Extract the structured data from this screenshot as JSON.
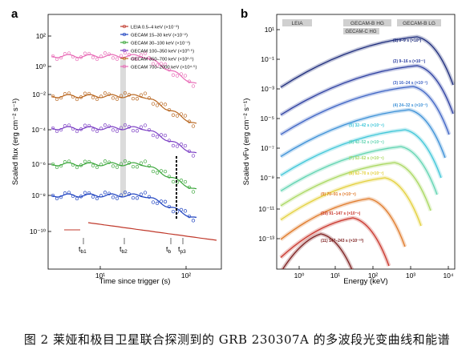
{
  "caption": "图 2  莱娅和极目卫星联合探测到的 GRB 230307A 的多波段光变曲线和能谱",
  "panel_a": {
    "label": "a",
    "xlabel": "Time since trigger (s)",
    "ylabel": "Scaled flux (erg cm⁻² s⁻¹)",
    "xscale": "log",
    "yscale": "log",
    "xlim": [
      2,
      300
    ],
    "ylim": [
      1e-11,
      10000.0
    ],
    "x_ticks": [
      "10⁰",
      "10¹",
      "10²"
    ],
    "y_ticks": [
      "10⁻¹⁰",
      "10⁻⁸",
      "10⁻⁶",
      "10⁻⁴",
      "10⁻²",
      "10⁰",
      "10²"
    ],
    "legend": [
      {
        "label": "LEIA 0.5–4 keV (×10⁻³)",
        "color": "#c0392b"
      },
      {
        "label": "GECAM 15–30 keV (×10⁻²)",
        "color": "#1a3fbf"
      },
      {
        "label": "GECAM 30–100 keV (×10⁻¹)",
        "color": "#3aa63a"
      },
      {
        "label": "GECAM 100–350 keV (×10⁰·⁵)",
        "color": "#7b3ec4"
      },
      {
        "label": "GECAM 350–700 keV (×10²·⁵)",
        "color": "#b8651e"
      },
      {
        "label": "GECAM 700–2000 keV (×10⁴·⁵)",
        "color": "#e86bb6"
      }
    ],
    "band_marks": [
      "t_b1",
      "t_b2",
      "t_b",
      "t_p3"
    ],
    "markers": {
      "tb1": {
        "label": "t",
        "sub": "b1"
      },
      "tb2": {
        "label": "t",
        "sub": "b2"
      },
      "tb": {
        "label": "t",
        "sub": "b"
      },
      "tp3": {
        "label": "t",
        "sub": "p3"
      }
    }
  },
  "panel_b": {
    "label": "b",
    "xlabel": "Energy (keV)",
    "ylabel": "Scaled νFν (erg cm⁻² s⁻¹)",
    "xscale": "log",
    "yscale": "log",
    "xlim": [
      0.3,
      10000
    ],
    "ylim": [
      1e-14,
      1000.0
    ],
    "x_ticks": [
      "10⁰",
      "10¹",
      "10²",
      "10³",
      "10⁴"
    ],
    "y_ticks": [
      "10⁻¹³",
      "10⁻¹¹",
      "10⁻⁹",
      "10⁻⁷",
      "10⁻⁵",
      "10⁻³",
      "10⁻¹",
      "10¹"
    ],
    "instrument_labels": [
      "LEIA",
      "GECAM-B HG",
      "GECAM-C HG",
      "GECAM-B LG"
    ],
    "spectra": [
      {
        "label": "(1) 0–9 s (×10⁰)",
        "color": "#1b2a7a"
      },
      {
        "label": "(2) 9–16 s (×10⁻¹)",
        "color": "#2b3ea0"
      },
      {
        "label": "(3) 16–24 s (×10⁻²)",
        "color": "#3d63c4"
      },
      {
        "label": "(4) 24–32 s (×10⁻³)",
        "color": "#3a8fd6"
      },
      {
        "label": "(5) 32–42 s (×10⁻⁴)",
        "color": "#3ec6d8"
      },
      {
        "label": "(6) 42–52 s (×10⁻⁵)",
        "color": "#5fd3b0"
      },
      {
        "label": "(7) 52–62 s (×10⁻⁶)",
        "color": "#a9d860"
      },
      {
        "label": "(8) 62–70 s (×10⁻⁷)",
        "color": "#e3cf3a"
      },
      {
        "label": "(9) 70–91 s (×10⁻⁸)",
        "color": "#e07a2a"
      },
      {
        "label": "(10) 91–147 s (×10⁻⁹)",
        "color": "#c9352b"
      },
      {
        "label": "(11) 147–243 s (×10⁻¹⁰)",
        "color": "#7d1f1f"
      }
    ]
  }
}
